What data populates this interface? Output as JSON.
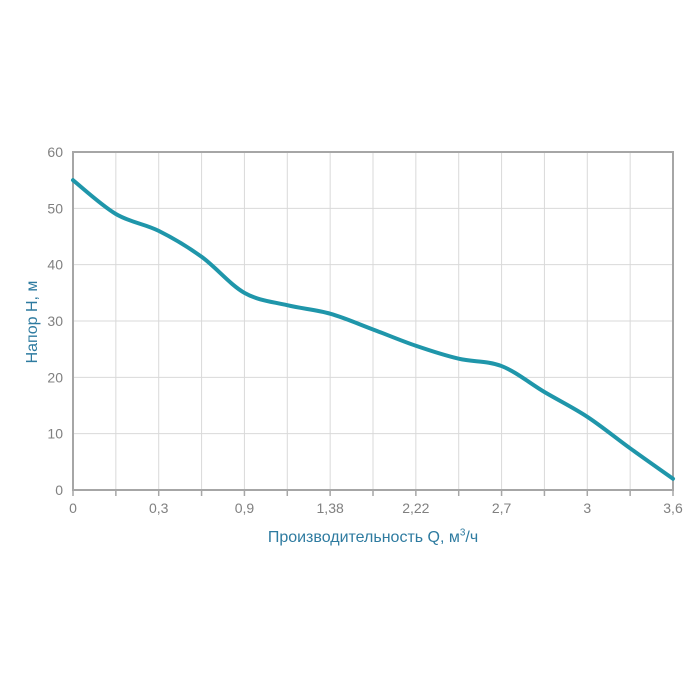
{
  "page": {
    "background": "#ffffff"
  },
  "chart_data": {
    "type": "line",
    "title": "",
    "xlabel": "Производительность Q, м³/ч",
    "xlabel_parts": {
      "pre": "Производительность Q, м",
      "sup": "3",
      "post": "/ч"
    },
    "ylabel": "Напор H, м",
    "x_tick_labels": [
      "0",
      "0,3",
      "0,9",
      "1,38",
      "2,22",
      "2,7",
      "3",
      "3,6"
    ],
    "x_axis_note": "tick labels are evenly spaced (categorical); one unlabeled minor gridline/tick between each labeled pair",
    "y_ticks": [
      0,
      10,
      20,
      30,
      40,
      50,
      60
    ],
    "y_tick_labels": [
      "0",
      "10",
      "20",
      "30",
      "40",
      "50",
      "60"
    ],
    "ylim": [
      0,
      60
    ],
    "grid": true,
    "legend": false,
    "series": [
      {
        "name": "pump-head-capacity-curve",
        "x_positions": [
          0,
          0.5,
          1,
          1.5,
          2,
          2.5,
          3,
          3.5,
          4,
          4.5,
          5,
          5.5,
          6,
          6.5,
          7
        ],
        "values": [
          55,
          49,
          46,
          41.4,
          35,
          32.8,
          31.3,
          28.5,
          25.6,
          23.3,
          22,
          17.4,
          13,
          7.4,
          2
        ],
        "values_at_labeled_ticks": {
          "0": 55,
          "0,3": 46,
          "0,9": 35,
          "1,38": 31.3,
          "2,22": 25.6,
          "2,7": 22,
          "3": 13,
          "3,6": 2
        },
        "color": "#1f96aa",
        "stroke_width": 4
      }
    ],
    "colors": {
      "curve": "#1f96aa",
      "axis_title": "#2e7ba0",
      "tick_label": "#808080",
      "gridline": "#d9d9d9",
      "frame": "#a6a6a6",
      "background": "#ffffff"
    }
  }
}
